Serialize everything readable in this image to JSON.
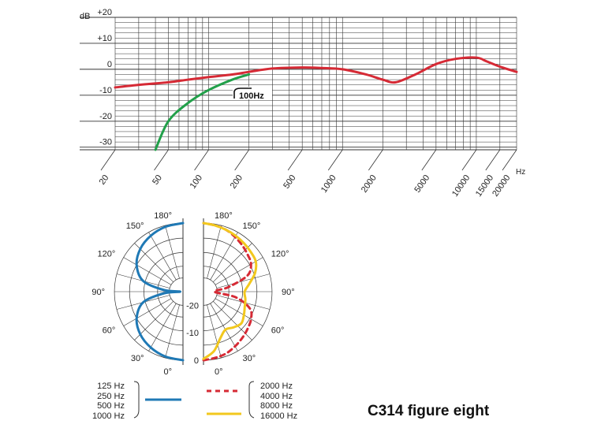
{
  "chart_data": [
    {
      "type": "line",
      "title": "",
      "ylabel": "dB",
      "xlabel": "Hz",
      "x_scale": "log",
      "xlim": [
        20,
        20000
      ],
      "ylim": [
        -31,
        20
      ],
      "grid": true,
      "y_ticks": [
        "+20",
        "+10",
        "0",
        "-10",
        "-20",
        "-30"
      ],
      "y_tick_values": [
        20,
        10,
        0,
        -10,
        -20,
        -30
      ],
      "x_ticks": [
        "20",
        "50",
        "100",
        "200",
        "500",
        "1000",
        "2000",
        "5000",
        "10000",
        "15000",
        "20000"
      ],
      "x_tick_values": [
        20,
        50,
        100,
        200,
        500,
        1000,
        2000,
        5000,
        10000,
        15000,
        20000
      ],
      "annotation": "100Hz",
      "series": [
        {
          "color": "#d62a35",
          "x": [
            20,
            30,
            50,
            70,
            100,
            150,
            200,
            300,
            500,
            700,
            1000,
            1500,
            2000,
            2500,
            3500,
            5000,
            7000,
            10000,
            12000,
            15000,
            20000
          ],
          "y": [
            -7,
            -6,
            -5,
            -4,
            -3,
            -2,
            -1,
            0.3,
            0.7,
            0.5,
            0,
            -2,
            -4,
            -5,
            -2,
            2,
            4,
            4.5,
            3,
            1,
            -1
          ]
        },
        {
          "color": "#22a04a",
          "x": [
            40,
            50,
            70,
            100,
            150,
            200
          ],
          "y": [
            -31,
            -20,
            -13,
            -8,
            -4,
            -2
          ]
        }
      ]
    },
    {
      "type": "polar",
      "angle_labels_left": [
        "180°",
        "150°",
        "120°",
        "90°",
        "60°",
        "30°",
        "0°"
      ],
      "angle_labels_right": [
        "180°",
        "150°",
        "120°",
        "90°",
        "60°",
        "30°",
        "0°"
      ],
      "radial_labels": [
        "-20",
        "-10",
        "0"
      ],
      "radial_values": [
        -20,
        -10,
        0
      ],
      "rlim": [
        -25,
        0
      ],
      "series": [
        {
          "color": "#1f79b5",
          "side": "left",
          "angles": [
            0,
            15,
            30,
            45,
            60,
            75,
            85,
            90,
            95,
            105,
            120,
            135,
            150,
            165,
            180
          ],
          "r": [
            0,
            -0.5,
            -1.5,
            -3,
            -5.5,
            -10,
            -18,
            -24,
            -18,
            -10,
            -5.5,
            -3,
            -1.5,
            -0.5,
            0
          ]
        },
        {
          "color": "#d62a35",
          "side": "right",
          "dashed": true,
          "angles": [
            0,
            10,
            20,
            30,
            40,
            50,
            60,
            70,
            80,
            90,
            100,
            110,
            120,
            130,
            140,
            150,
            160,
            170,
            180
          ],
          "r": [
            0,
            -0.5,
            -1,
            -2,
            -3,
            -4,
            -5,
            -7,
            -13,
            -21,
            -16,
            -8,
            -5,
            -4,
            -3,
            -2,
            -1,
            -0.5,
            0
          ]
        },
        {
          "color": "#f2c81e",
          "side": "right",
          "angles": [
            0,
            10,
            20,
            30,
            40,
            50,
            60,
            70,
            80,
            90,
            100,
            110,
            120,
            130,
            140,
            150,
            160,
            170,
            180
          ],
          "r": [
            -0.5,
            -3,
            -7,
            -9,
            -8,
            -7,
            -8,
            -9,
            -9.5,
            -10,
            -8,
            -5,
            -3,
            -2.5,
            -2,
            -1.5,
            -1,
            -0.5,
            0
          ]
        }
      ]
    }
  ],
  "legend": {
    "left_labels": [
      "125 Hz",
      "250 Hz",
      "500 Hz",
      "1000 Hz"
    ],
    "right_labels": [
      "2000 Hz",
      "4000 Hz",
      "8000 Hz",
      "16000 Hz"
    ]
  },
  "footer_title": "C314 figure eight"
}
